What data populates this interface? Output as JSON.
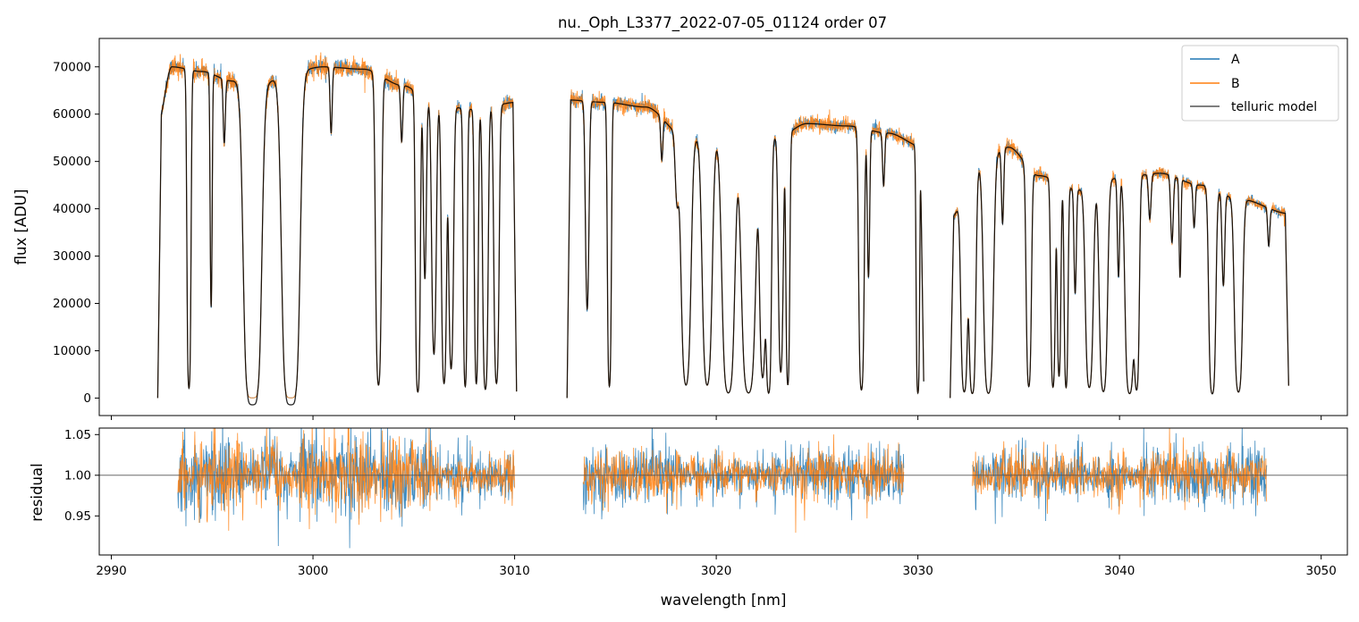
{
  "colors": {
    "A": "#1f77b4",
    "B": "#ff7f0e",
    "model": "#000000",
    "axis": "#000000",
    "legend_edge": "#cccccc",
    "residual_ref": "#555555"
  },
  "chart_data": [
    {
      "panel": "top",
      "type": "line",
      "title": "nu._Oph_L3377_2022-07-05_01124  order 07",
      "xlabel": "",
      "ylabel": "flux [ADU]",
      "xlim": [
        2989.4,
        3051.3
      ],
      "ylim": [
        -3700,
        76000
      ],
      "yticks": [
        0,
        10000,
        20000,
        30000,
        40000,
        50000,
        60000,
        70000
      ],
      "ytick_labels": [
        "0",
        "10000",
        "20000",
        "30000",
        "40000",
        "50000",
        "60000",
        "70000"
      ],
      "xticks": [
        2990,
        3000,
        3010,
        3020,
        3030,
        3040,
        3050
      ],
      "segments": [
        [
          2992.3,
          3010.1
        ],
        [
          3012.6,
          3030.3
        ],
        [
          3031.6,
          3048.4
        ]
      ],
      "continuum_knots": [
        [
          2992.3,
          58000
        ],
        [
          2993.0,
          70000
        ],
        [
          2994.5,
          69000
        ],
        [
          2996.0,
          67000
        ],
        [
          2997.5,
          66500
        ],
        [
          2999.0,
          69000
        ],
        [
          3000.5,
          70000
        ],
        [
          3002.5,
          69500
        ],
        [
          3004.5,
          66000
        ],
        [
          3006.0,
          62000
        ],
        [
          3008.0,
          61000
        ],
        [
          3010.1,
          62500
        ],
        [
          3012.6,
          63000
        ],
        [
          3014.5,
          62500
        ],
        [
          3016.5,
          61500
        ],
        [
          3018.5,
          55000
        ],
        [
          3020.0,
          54500
        ],
        [
          3021.5,
          54000
        ],
        [
          3023.0,
          55000
        ],
        [
          3024.5,
          58000
        ],
        [
          3026.5,
          57500
        ],
        [
          3028.5,
          56000
        ],
        [
          3030.3,
          53000
        ],
        [
          3031.6,
          38000
        ],
        [
          3033.0,
          49000
        ],
        [
          3034.5,
          53000
        ],
        [
          3036.0,
          47000
        ],
        [
          3038.0,
          44000
        ],
        [
          3040.0,
          46500
        ],
        [
          3042.0,
          47500
        ],
        [
          3044.0,
          45000
        ],
        [
          3046.0,
          42000
        ],
        [
          3048.4,
          39000
        ]
      ],
      "absorption_lines": [
        [
          2993.85,
          0.97,
          0.06
        ],
        [
          2994.95,
          0.72,
          0.04
        ],
        [
          2995.6,
          0.2,
          0.05
        ],
        [
          2997.0,
          1.0,
          0.22
        ],
        [
          2998.9,
          1.0,
          0.22
        ],
        [
          3000.9,
          0.2,
          0.05
        ],
        [
          3003.25,
          0.96,
          0.09
        ],
        [
          3004.4,
          0.18,
          0.05
        ],
        [
          3005.2,
          0.98,
          0.07
        ],
        [
          3005.55,
          0.6,
          0.06
        ],
        [
          3006.0,
          0.85,
          0.08
        ],
        [
          3006.5,
          0.95,
          0.08
        ],
        [
          3006.85,
          0.9,
          0.08
        ],
        [
          3007.55,
          0.96,
          0.06
        ],
        [
          3008.1,
          0.95,
          0.06
        ],
        [
          3008.55,
          0.97,
          0.08
        ],
        [
          3009.1,
          0.95,
          0.08
        ],
        [
          3013.6,
          0.7,
          0.07
        ],
        [
          3014.7,
          0.96,
          0.06
        ],
        [
          3017.3,
          0.15,
          0.05
        ],
        [
          3018.05,
          0.25,
          0.08
        ],
        [
          3018.5,
          0.95,
          0.15
        ],
        [
          3019.55,
          0.95,
          0.15
        ],
        [
          3020.6,
          0.98,
          0.18
        ],
        [
          3021.6,
          0.98,
          0.2
        ],
        [
          3022.3,
          0.92,
          0.1
        ],
        [
          3022.6,
          0.98,
          0.08
        ],
        [
          3023.2,
          0.9,
          0.08
        ],
        [
          3023.55,
          0.95,
          0.06
        ],
        [
          3027.2,
          0.97,
          0.08
        ],
        [
          3027.55,
          0.55,
          0.05
        ],
        [
          3028.3,
          0.2,
          0.05
        ],
        [
          3030.0,
          0.98,
          0.05
        ],
        [
          3032.3,
          0.97,
          0.1
        ],
        [
          3032.7,
          0.98,
          0.1
        ],
        [
          3033.5,
          0.98,
          0.14
        ],
        [
          3034.2,
          0.3,
          0.05
        ],
        [
          3035.5,
          0.95,
          0.08
        ],
        [
          3036.7,
          0.95,
          0.07
        ],
        [
          3037.0,
          0.9,
          0.06
        ],
        [
          3037.35,
          0.95,
          0.06
        ],
        [
          3037.8,
          0.5,
          0.05
        ],
        [
          3038.5,
          0.95,
          0.12
        ],
        [
          3039.2,
          0.97,
          0.12
        ],
        [
          3039.95,
          0.45,
          0.05
        ],
        [
          3040.5,
          0.98,
          0.13
        ],
        [
          3040.85,
          0.96,
          0.08
        ],
        [
          3041.5,
          0.2,
          0.06
        ],
        [
          3042.6,
          0.3,
          0.06
        ],
        [
          3043.0,
          0.45,
          0.04
        ],
        [
          3043.7,
          0.2,
          0.05
        ],
        [
          3044.6,
          0.98,
          0.1
        ],
        [
          3045.15,
          0.45,
          0.06
        ],
        [
          3045.9,
          0.97,
          0.12
        ],
        [
          3047.4,
          0.2,
          0.05
        ]
      ],
      "series": [
        {
          "name": "A",
          "color_key": "A",
          "noise": 0.012,
          "width": 0.9
        },
        {
          "name": "B",
          "color_key": "B",
          "noise": 0.015,
          "width": 0.9
        },
        {
          "name": "telluric model",
          "color_key": "model",
          "noise": 0.0,
          "width": 1.3
        }
      ],
      "legend": {
        "placement": "upper right",
        "entries": [
          "A",
          "B",
          "telluric model"
        ]
      }
    },
    {
      "panel": "bottom",
      "type": "line",
      "xlabel": "wavelength [nm]",
      "ylabel": "residual",
      "xlim": [
        2989.4,
        3051.3
      ],
      "ylim": [
        0.902,
        1.058
      ],
      "yticks": [
        0.95,
        1.0,
        1.05
      ],
      "ytick_labels": [
        "0.95",
        "1.00",
        "1.05"
      ],
      "xticks": [
        2990,
        3000,
        3010,
        3020,
        3030,
        3040,
        3050
      ],
      "xtick_labels": [
        "2990",
        "3000",
        "3010",
        "3020",
        "3030",
        "3040",
        "3050"
      ],
      "reference_line": 1.0,
      "segments": [
        [
          2993.3,
          3010.0
        ],
        [
          3013.4,
          3029.3
        ],
        [
          3032.7,
          3047.3
        ]
      ],
      "series": [
        {
          "name": "A",
          "color_key": "A",
          "noise": 0.018
        },
        {
          "name": "B",
          "color_key": "B",
          "noise": 0.016
        }
      ]
    }
  ]
}
